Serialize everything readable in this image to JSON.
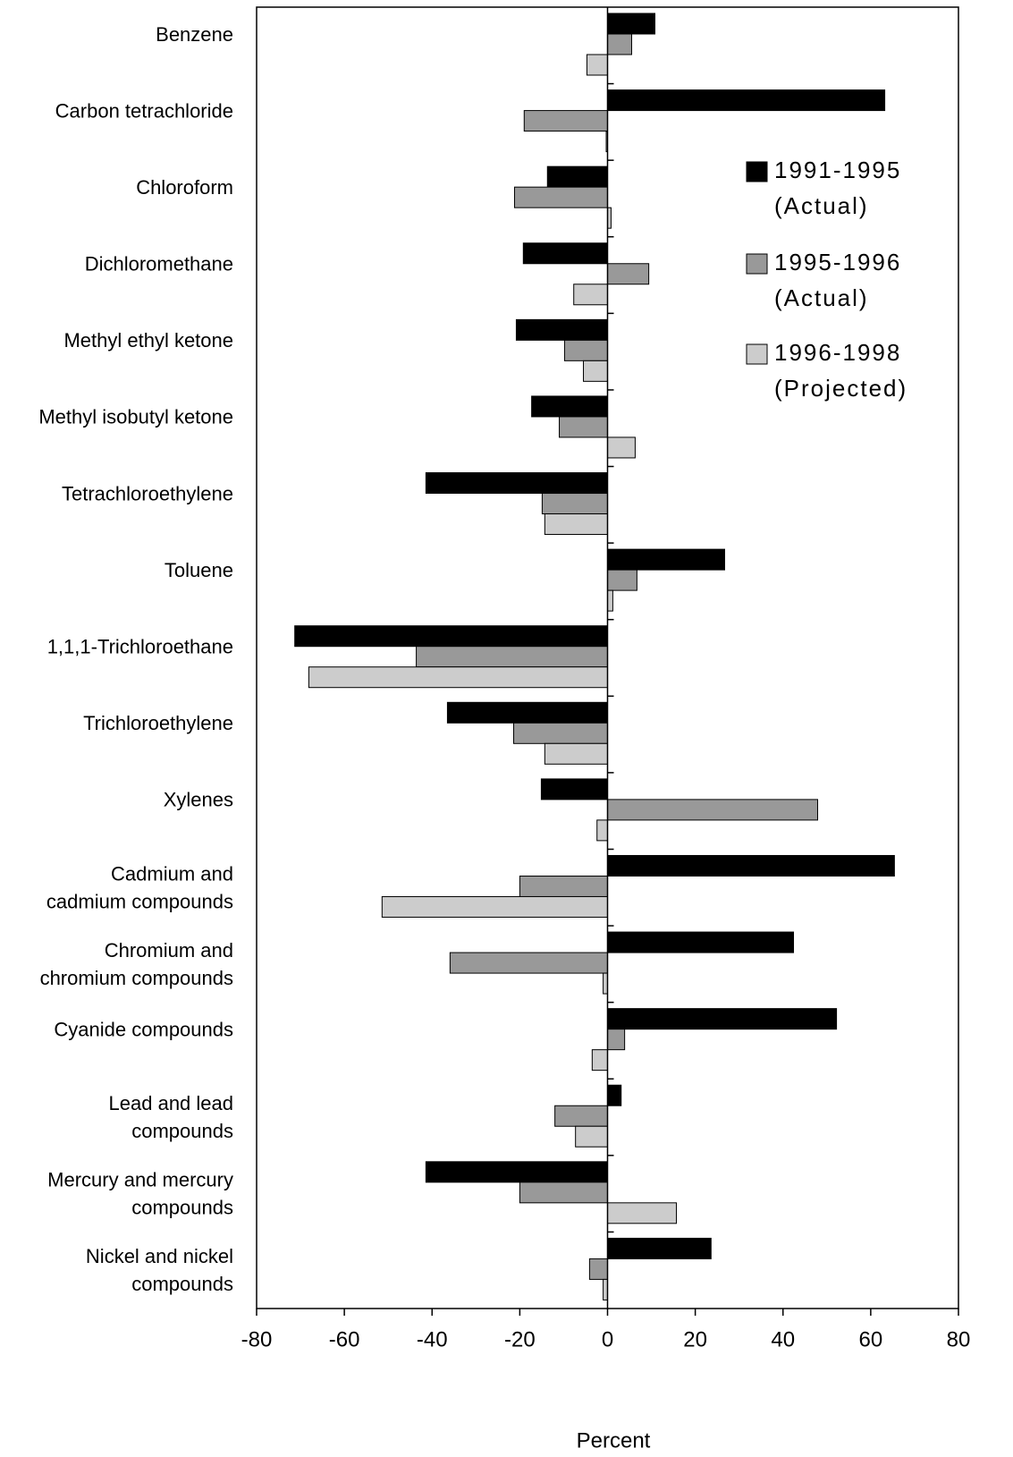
{
  "chart_data": {
    "type": "barh",
    "categories": [
      "Benzene",
      "Carbon tetrachloride",
      "Chloroform",
      "Dichloromethane",
      "Methyl ethyl ketone",
      "Methyl isobutyl ketone",
      "Tetrachloroethylene",
      "Toluene",
      "1,1,1-Trichloroethane",
      "Trichloroethylene",
      "Xylenes",
      "Cadmium and\ncadmium compounds",
      "Chromium and\nchromium compounds",
      "Cyanide compounds",
      "Lead and lead\ncompounds",
      "Mercury and mercury\ncompounds",
      "Nickel and nickel\ncompounds"
    ],
    "series": [
      {
        "name": "1991-1995\n(Actual)",
        "color": "#000000",
        "values": [
          10.8,
          63.2,
          -13.7,
          -19.2,
          -20.8,
          -17.3,
          -41.4,
          26.7,
          -71.3,
          -36.5,
          -15.1,
          65.4,
          42.4,
          52.2,
          3.1,
          -41.4,
          23.6
        ]
      },
      {
        "name": "1995-1996\n(Actual)",
        "color": "#999999",
        "values": [
          5.5,
          -19,
          -21.2,
          9.4,
          -9.8,
          -11,
          -14.9,
          6.7,
          -43.6,
          -21.4,
          47.9,
          -20,
          -35.9,
          3.9,
          -12,
          -20,
          -4.1
        ]
      },
      {
        "name": "1996-1998\n(Projected)",
        "color": "#cccccc",
        "values": [
          -4.7,
          -0.3,
          0.8,
          -7.7,
          -5.5,
          6.3,
          -14.3,
          1.2,
          -68.1,
          -14.3,
          -2.4,
          -51.4,
          -1.0,
          -3.5,
          -7.3,
          15.7,
          -1.0
        ]
      }
    ],
    "xlabel": "Percent",
    "xlim": [
      -80,
      80
    ],
    "xticks": [
      -80,
      -60,
      -40,
      -20,
      0,
      20,
      40,
      60,
      80
    ]
  }
}
